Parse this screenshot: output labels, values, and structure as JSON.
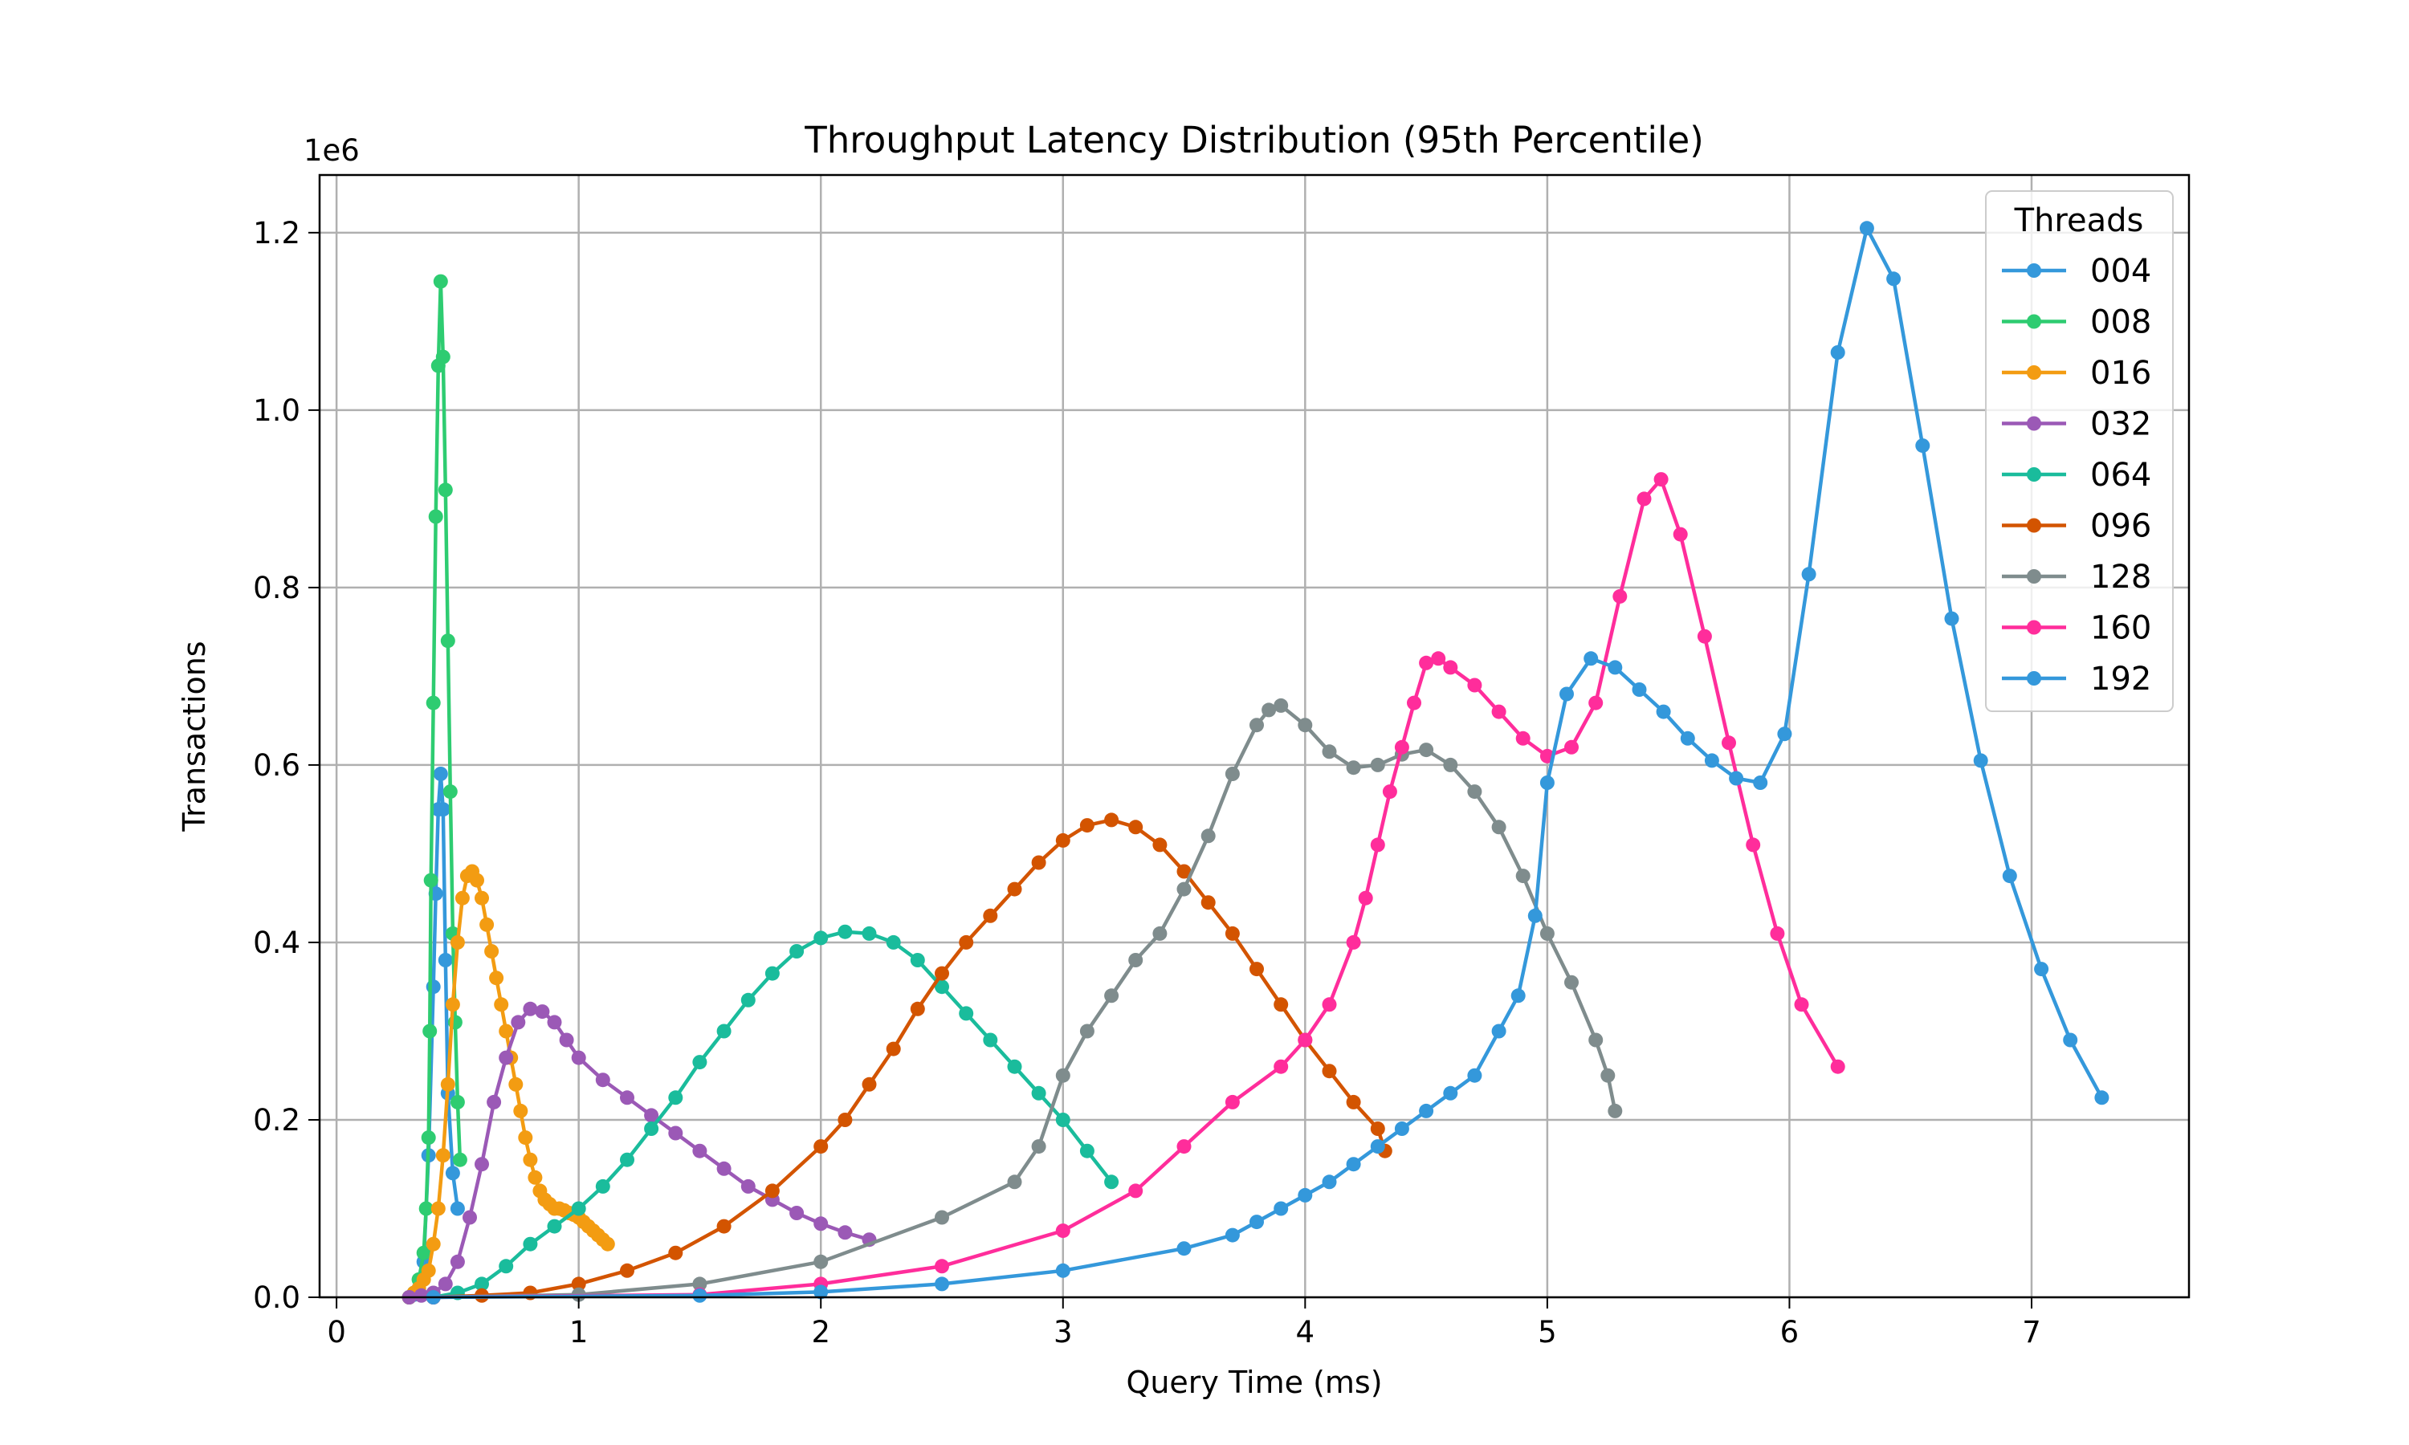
{
  "chart_data": {
    "type": "line",
    "title": "Throughput Latency Distribution (95th Percentile)",
    "xlabel": "Query Time (ms)",
    "ylabel": "Transactions",
    "y_multiplier_label": "1e6",
    "xlim": [
      -0.07,
      7.65
    ],
    "ylim": [
      0,
      1.265
    ],
    "x_ticks": [
      0,
      1,
      2,
      3,
      4,
      5,
      6,
      7
    ],
    "x_tick_labels": [
      "0",
      "1",
      "2",
      "3",
      "4",
      "5",
      "6",
      "7"
    ],
    "y_ticks": [
      0,
      0.2,
      0.4,
      0.6,
      0.8,
      1.0,
      1.2
    ],
    "y_tick_labels": [
      "0.0",
      "0.2",
      "0.4",
      "0.6",
      "0.8",
      "1.0",
      "1.2"
    ],
    "grid": true,
    "legend_title": "Threads",
    "legend_position": "top-right",
    "series": [
      {
        "name": "004",
        "color": "#3498db",
        "points": [
          [
            0.3,
            0.0
          ],
          [
            0.32,
            0.003
          ],
          [
            0.34,
            0.01
          ],
          [
            0.36,
            0.04
          ],
          [
            0.38,
            0.16
          ],
          [
            0.4,
            0.35
          ],
          [
            0.41,
            0.455
          ],
          [
            0.42,
            0.55
          ],
          [
            0.43,
            0.59
          ],
          [
            0.44,
            0.55
          ],
          [
            0.45,
            0.38
          ],
          [
            0.46,
            0.23
          ],
          [
            0.48,
            0.14
          ],
          [
            0.5,
            0.1
          ]
        ]
      },
      {
        "name": "008",
        "color": "#2ecc71",
        "points": [
          [
            0.3,
            0.0
          ],
          [
            0.32,
            0.005
          ],
          [
            0.34,
            0.02
          ],
          [
            0.36,
            0.05
          ],
          [
            0.37,
            0.1
          ],
          [
            0.38,
            0.18
          ],
          [
            0.385,
            0.3
          ],
          [
            0.39,
            0.47
          ],
          [
            0.4,
            0.67
          ],
          [
            0.41,
            0.88
          ],
          [
            0.42,
            1.05
          ],
          [
            0.43,
            1.145
          ],
          [
            0.44,
            1.06
          ],
          [
            0.45,
            0.91
          ],
          [
            0.46,
            0.74
          ],
          [
            0.47,
            0.57
          ],
          [
            0.48,
            0.41
          ],
          [
            0.49,
            0.31
          ],
          [
            0.5,
            0.22
          ],
          [
            0.51,
            0.155
          ]
        ]
      },
      {
        "name": "016",
        "color": "#f39c12",
        "points": [
          [
            0.3,
            0.0
          ],
          [
            0.32,
            0.005
          ],
          [
            0.34,
            0.01
          ],
          [
            0.36,
            0.02
          ],
          [
            0.38,
            0.03
          ],
          [
            0.4,
            0.06
          ],
          [
            0.42,
            0.1
          ],
          [
            0.44,
            0.16
          ],
          [
            0.46,
            0.24
          ],
          [
            0.48,
            0.33
          ],
          [
            0.5,
            0.4
          ],
          [
            0.52,
            0.45
          ],
          [
            0.54,
            0.475
          ],
          [
            0.56,
            0.48
          ],
          [
            0.58,
            0.47
          ],
          [
            0.6,
            0.45
          ],
          [
            0.62,
            0.42
          ],
          [
            0.64,
            0.39
          ],
          [
            0.66,
            0.36
          ],
          [
            0.68,
            0.33
          ],
          [
            0.7,
            0.3
          ],
          [
            0.72,
            0.27
          ],
          [
            0.74,
            0.24
          ],
          [
            0.76,
            0.21
          ],
          [
            0.78,
            0.18
          ],
          [
            0.8,
            0.155
          ],
          [
            0.82,
            0.135
          ],
          [
            0.84,
            0.12
          ],
          [
            0.86,
            0.11
          ],
          [
            0.88,
            0.105
          ],
          [
            0.9,
            0.1
          ],
          [
            0.92,
            0.1
          ],
          [
            0.94,
            0.098
          ],
          [
            0.96,
            0.095
          ],
          [
            0.98,
            0.093
          ],
          [
            1.0,
            0.09
          ],
          [
            1.02,
            0.085
          ],
          [
            1.04,
            0.08
          ],
          [
            1.06,
            0.075
          ],
          [
            1.08,
            0.07
          ],
          [
            1.1,
            0.065
          ],
          [
            1.12,
            0.06
          ]
        ]
      },
      {
        "name": "032",
        "color": "#9b59b6",
        "points": [
          [
            0.3,
            0.0
          ],
          [
            0.35,
            0.002
          ],
          [
            0.4,
            0.005
          ],
          [
            0.45,
            0.015
          ],
          [
            0.5,
            0.04
          ],
          [
            0.55,
            0.09
          ],
          [
            0.6,
            0.15
          ],
          [
            0.65,
            0.22
          ],
          [
            0.7,
            0.27
          ],
          [
            0.75,
            0.31
          ],
          [
            0.8,
            0.325
          ],
          [
            0.85,
            0.322
          ],
          [
            0.9,
            0.31
          ],
          [
            0.95,
            0.29
          ],
          [
            1.0,
            0.27
          ],
          [
            1.1,
            0.245
          ],
          [
            1.2,
            0.225
          ],
          [
            1.3,
            0.205
          ],
          [
            1.4,
            0.185
          ],
          [
            1.5,
            0.165
          ],
          [
            1.6,
            0.145
          ],
          [
            1.7,
            0.125
          ],
          [
            1.8,
            0.11
          ],
          [
            1.9,
            0.095
          ],
          [
            2.0,
            0.083
          ],
          [
            2.1,
            0.073
          ],
          [
            2.2,
            0.065
          ]
        ]
      },
      {
        "name": "064",
        "color": "#1abc9c",
        "points": [
          [
            0.4,
            0.0
          ],
          [
            0.5,
            0.005
          ],
          [
            0.6,
            0.015
          ],
          [
            0.7,
            0.035
          ],
          [
            0.8,
            0.06
          ],
          [
            0.9,
            0.08
          ],
          [
            1.0,
            0.1
          ],
          [
            1.1,
            0.125
          ],
          [
            1.2,
            0.155
          ],
          [
            1.3,
            0.19
          ],
          [
            1.4,
            0.225
          ],
          [
            1.5,
            0.265
          ],
          [
            1.6,
            0.3
          ],
          [
            1.7,
            0.335
          ],
          [
            1.8,
            0.365
          ],
          [
            1.9,
            0.39
          ],
          [
            2.0,
            0.405
          ],
          [
            2.1,
            0.412
          ],
          [
            2.2,
            0.41
          ],
          [
            2.3,
            0.4
          ],
          [
            2.4,
            0.38
          ],
          [
            2.5,
            0.35
          ],
          [
            2.6,
            0.32
          ],
          [
            2.7,
            0.29
          ],
          [
            2.8,
            0.26
          ],
          [
            2.9,
            0.23
          ],
          [
            3.0,
            0.2
          ],
          [
            3.1,
            0.165
          ],
          [
            3.2,
            0.13
          ]
        ]
      },
      {
        "name": "096",
        "color": "#d35400",
        "points": [
          [
            0.4,
            0.0
          ],
          [
            0.6,
            0.002
          ],
          [
            0.8,
            0.005
          ],
          [
            1.0,
            0.015
          ],
          [
            1.2,
            0.03
          ],
          [
            1.4,
            0.05
          ],
          [
            1.6,
            0.08
          ],
          [
            1.8,
            0.12
          ],
          [
            2.0,
            0.17
          ],
          [
            2.1,
            0.2
          ],
          [
            2.2,
            0.24
          ],
          [
            2.3,
            0.28
          ],
          [
            2.4,
            0.325
          ],
          [
            2.5,
            0.365
          ],
          [
            2.6,
            0.4
          ],
          [
            2.7,
            0.43
          ],
          [
            2.8,
            0.46
          ],
          [
            2.9,
            0.49
          ],
          [
            3.0,
            0.515
          ],
          [
            3.1,
            0.532
          ],
          [
            3.2,
            0.538
          ],
          [
            3.3,
            0.53
          ],
          [
            3.4,
            0.51
          ],
          [
            3.5,
            0.48
          ],
          [
            3.6,
            0.445
          ],
          [
            3.7,
            0.41
          ],
          [
            3.8,
            0.37
          ],
          [
            3.9,
            0.33
          ],
          [
            4.0,
            0.29
          ],
          [
            4.1,
            0.255
          ],
          [
            4.2,
            0.22
          ],
          [
            4.3,
            0.19
          ],
          [
            4.33,
            0.165
          ]
        ]
      },
      {
        "name": "128",
        "color": "#7f8c8d",
        "points": [
          [
            0.4,
            0.0
          ],
          [
            1.0,
            0.003
          ],
          [
            1.5,
            0.015
          ],
          [
            2.0,
            0.04
          ],
          [
            2.5,
            0.09
          ],
          [
            2.8,
            0.13
          ],
          [
            2.9,
            0.17
          ],
          [
            3.0,
            0.25
          ],
          [
            3.1,
            0.3
          ],
          [
            3.2,
            0.34
          ],
          [
            3.3,
            0.38
          ],
          [
            3.4,
            0.41
          ],
          [
            3.5,
            0.46
          ],
          [
            3.6,
            0.52
          ],
          [
            3.7,
            0.59
          ],
          [
            3.8,
            0.645
          ],
          [
            3.85,
            0.662
          ],
          [
            3.9,
            0.667
          ],
          [
            4.0,
            0.645
          ],
          [
            4.1,
            0.615
          ],
          [
            4.2,
            0.597
          ],
          [
            4.3,
            0.6
          ],
          [
            4.4,
            0.612
          ],
          [
            4.5,
            0.617
          ],
          [
            4.6,
            0.6
          ],
          [
            4.7,
            0.57
          ],
          [
            4.8,
            0.53
          ],
          [
            4.9,
            0.475
          ],
          [
            5.0,
            0.41
          ],
          [
            5.1,
            0.355
          ],
          [
            5.2,
            0.29
          ],
          [
            5.25,
            0.25
          ],
          [
            5.28,
            0.21
          ]
        ]
      },
      {
        "name": "160",
        "color": "#ff2d9b",
        "points": [
          [
            0.4,
            0.0
          ],
          [
            1.5,
            0.003
          ],
          [
            2.0,
            0.015
          ],
          [
            2.5,
            0.035
          ],
          [
            3.0,
            0.075
          ],
          [
            3.3,
            0.12
          ],
          [
            3.5,
            0.17
          ],
          [
            3.7,
            0.22
          ],
          [
            3.9,
            0.26
          ],
          [
            4.0,
            0.29
          ],
          [
            4.1,
            0.33
          ],
          [
            4.2,
            0.4
          ],
          [
            4.25,
            0.45
          ],
          [
            4.3,
            0.51
          ],
          [
            4.35,
            0.57
          ],
          [
            4.4,
            0.62
          ],
          [
            4.45,
            0.67
          ],
          [
            4.5,
            0.715
          ],
          [
            4.55,
            0.72
          ],
          [
            4.6,
            0.71
          ],
          [
            4.7,
            0.69
          ],
          [
            4.8,
            0.66
          ],
          [
            4.9,
            0.63
          ],
          [
            5.0,
            0.61
          ],
          [
            5.1,
            0.62
          ],
          [
            5.2,
            0.67
          ],
          [
            5.3,
            0.79
          ],
          [
            5.4,
            0.9
          ],
          [
            5.47,
            0.922
          ],
          [
            5.55,
            0.86
          ],
          [
            5.65,
            0.745
          ],
          [
            5.75,
            0.625
          ],
          [
            5.85,
            0.51
          ],
          [
            5.95,
            0.41
          ],
          [
            6.05,
            0.33
          ],
          [
            6.2,
            0.26
          ]
        ]
      },
      {
        "name": "192",
        "color": "#3498db",
        "points": [
          [
            0.4,
            0.0
          ],
          [
            1.5,
            0.002
          ],
          [
            2.0,
            0.006
          ],
          [
            2.5,
            0.015
          ],
          [
            3.0,
            0.03
          ],
          [
            3.5,
            0.055
          ],
          [
            3.7,
            0.07
          ],
          [
            3.8,
            0.085
          ],
          [
            3.9,
            0.1
          ],
          [
            4.0,
            0.115
          ],
          [
            4.1,
            0.13
          ],
          [
            4.2,
            0.15
          ],
          [
            4.3,
            0.17
          ],
          [
            4.4,
            0.19
          ],
          [
            4.5,
            0.21
          ],
          [
            4.6,
            0.23
          ],
          [
            4.7,
            0.25
          ],
          [
            4.8,
            0.3
          ],
          [
            4.88,
            0.34
          ],
          [
            4.95,
            0.43
          ],
          [
            5.0,
            0.58
          ],
          [
            5.08,
            0.68
          ],
          [
            5.18,
            0.72
          ],
          [
            5.28,
            0.71
          ],
          [
            5.38,
            0.685
          ],
          [
            5.48,
            0.66
          ],
          [
            5.58,
            0.63
          ],
          [
            5.68,
            0.605
          ],
          [
            5.78,
            0.585
          ],
          [
            5.88,
            0.58
          ],
          [
            5.98,
            0.635
          ],
          [
            6.08,
            0.815
          ],
          [
            6.2,
            1.065
          ],
          [
            6.32,
            1.205
          ],
          [
            6.43,
            1.148
          ],
          [
            6.55,
            0.96
          ],
          [
            6.67,
            0.765
          ],
          [
            6.79,
            0.605
          ],
          [
            6.91,
            0.475
          ],
          [
            7.04,
            0.37
          ],
          [
            7.16,
            0.29
          ],
          [
            7.29,
            0.225
          ]
        ]
      }
    ]
  }
}
